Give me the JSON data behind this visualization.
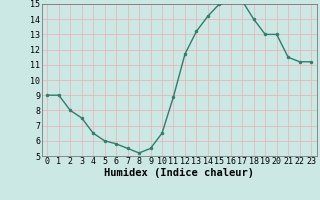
{
  "x": [
    0,
    1,
    2,
    3,
    4,
    5,
    6,
    7,
    8,
    9,
    10,
    11,
    12,
    13,
    14,
    15,
    16,
    17,
    18,
    19,
    20,
    21,
    22,
    23
  ],
  "y": [
    9.0,
    9.0,
    8.0,
    7.5,
    6.5,
    6.0,
    5.8,
    5.5,
    5.2,
    5.5,
    6.5,
    8.9,
    11.7,
    13.2,
    14.2,
    15.0,
    15.1,
    15.2,
    14.0,
    13.0,
    13.0,
    11.5,
    11.2,
    11.2
  ],
  "bg_color": "#cbe8e4",
  "grid_color": "#e8b8b8",
  "line_color": "#2e7d6e",
  "marker_color": "#2e7d6e",
  "xlabel": "Humidex (Indice chaleur)",
  "ylim": [
    5,
    15
  ],
  "xlim": [
    -0.5,
    23.5
  ],
  "yticks": [
    5,
    6,
    7,
    8,
    9,
    10,
    11,
    12,
    13,
    14,
    15
  ],
  "xticks": [
    0,
    1,
    2,
    3,
    4,
    5,
    6,
    7,
    8,
    9,
    10,
    11,
    12,
    13,
    14,
    15,
    16,
    17,
    18,
    19,
    20,
    21,
    22,
    23
  ],
  "tick_font_size": 6.0,
  "label_font_size": 7.5
}
